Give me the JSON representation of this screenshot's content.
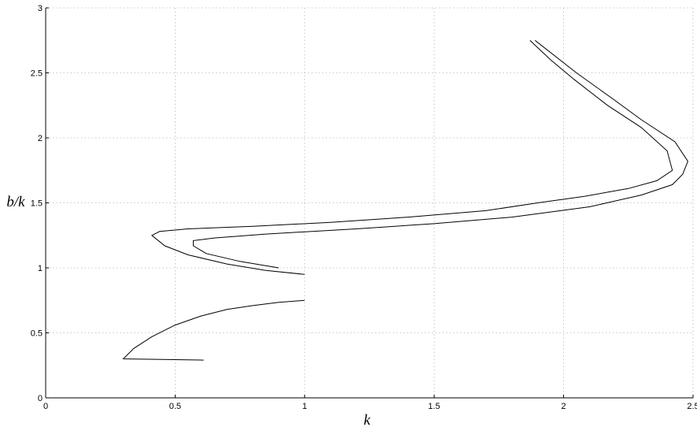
{
  "chart_data": {
    "type": "line",
    "title": "",
    "xlabel": "k",
    "ylabel": "b/k",
    "xlim": [
      0,
      2.5
    ],
    "ylim": [
      0,
      3
    ],
    "x_ticks": [
      "0",
      "0.5",
      "1",
      "1.5",
      "2",
      "2.5"
    ],
    "y_ticks": [
      "0",
      "0.5",
      "1",
      "1.5",
      "2",
      "2.5",
      "3"
    ],
    "grid": true,
    "legend": "none",
    "line_color": "#000000",
    "series": [
      {
        "points": [
          [
            0.61,
            0.29
          ],
          [
            0.3,
            0.3
          ],
          [
            0.34,
            0.38
          ],
          [
            0.41,
            0.47
          ],
          [
            0.5,
            0.56
          ],
          [
            0.6,
            0.63
          ],
          [
            0.7,
            0.68
          ],
          [
            0.8,
            0.71
          ],
          [
            0.9,
            0.735
          ],
          [
            1.0,
            0.75
          ]
        ]
      },
      {
        "points": [
          [
            1.0,
            0.95
          ],
          [
            0.85,
            0.98
          ],
          [
            0.7,
            1.03
          ],
          [
            0.55,
            1.1
          ],
          [
            0.46,
            1.17
          ],
          [
            0.41,
            1.25
          ],
          [
            0.44,
            1.28
          ],
          [
            0.55,
            1.3
          ],
          [
            0.8,
            1.32
          ],
          [
            1.1,
            1.35
          ],
          [
            1.4,
            1.39
          ],
          [
            1.7,
            1.44
          ],
          [
            1.9,
            1.5
          ],
          [
            2.08,
            1.55
          ],
          [
            2.25,
            1.61
          ],
          [
            2.36,
            1.67
          ],
          [
            2.42,
            1.75
          ],
          [
            2.4,
            1.9
          ],
          [
            2.3,
            2.08
          ],
          [
            2.17,
            2.25
          ],
          [
            2.04,
            2.45
          ],
          [
            1.95,
            2.6
          ],
          [
            1.87,
            2.75
          ]
        ]
      },
      {
        "points": [
          [
            0.9,
            1.0
          ],
          [
            0.75,
            1.05
          ],
          [
            0.62,
            1.11
          ],
          [
            0.57,
            1.17
          ],
          [
            0.57,
            1.21
          ],
          [
            0.65,
            1.23
          ],
          [
            0.85,
            1.26
          ],
          [
            1.2,
            1.3
          ],
          [
            1.5,
            1.34
          ],
          [
            1.8,
            1.39
          ],
          [
            2.1,
            1.47
          ],
          [
            2.3,
            1.56
          ],
          [
            2.42,
            1.64
          ],
          [
            2.46,
            1.72
          ],
          [
            2.48,
            1.82
          ],
          [
            2.43,
            1.97
          ],
          [
            2.3,
            2.14
          ],
          [
            2.19,
            2.3
          ],
          [
            2.05,
            2.5
          ],
          [
            1.89,
            2.75
          ]
        ]
      }
    ]
  }
}
